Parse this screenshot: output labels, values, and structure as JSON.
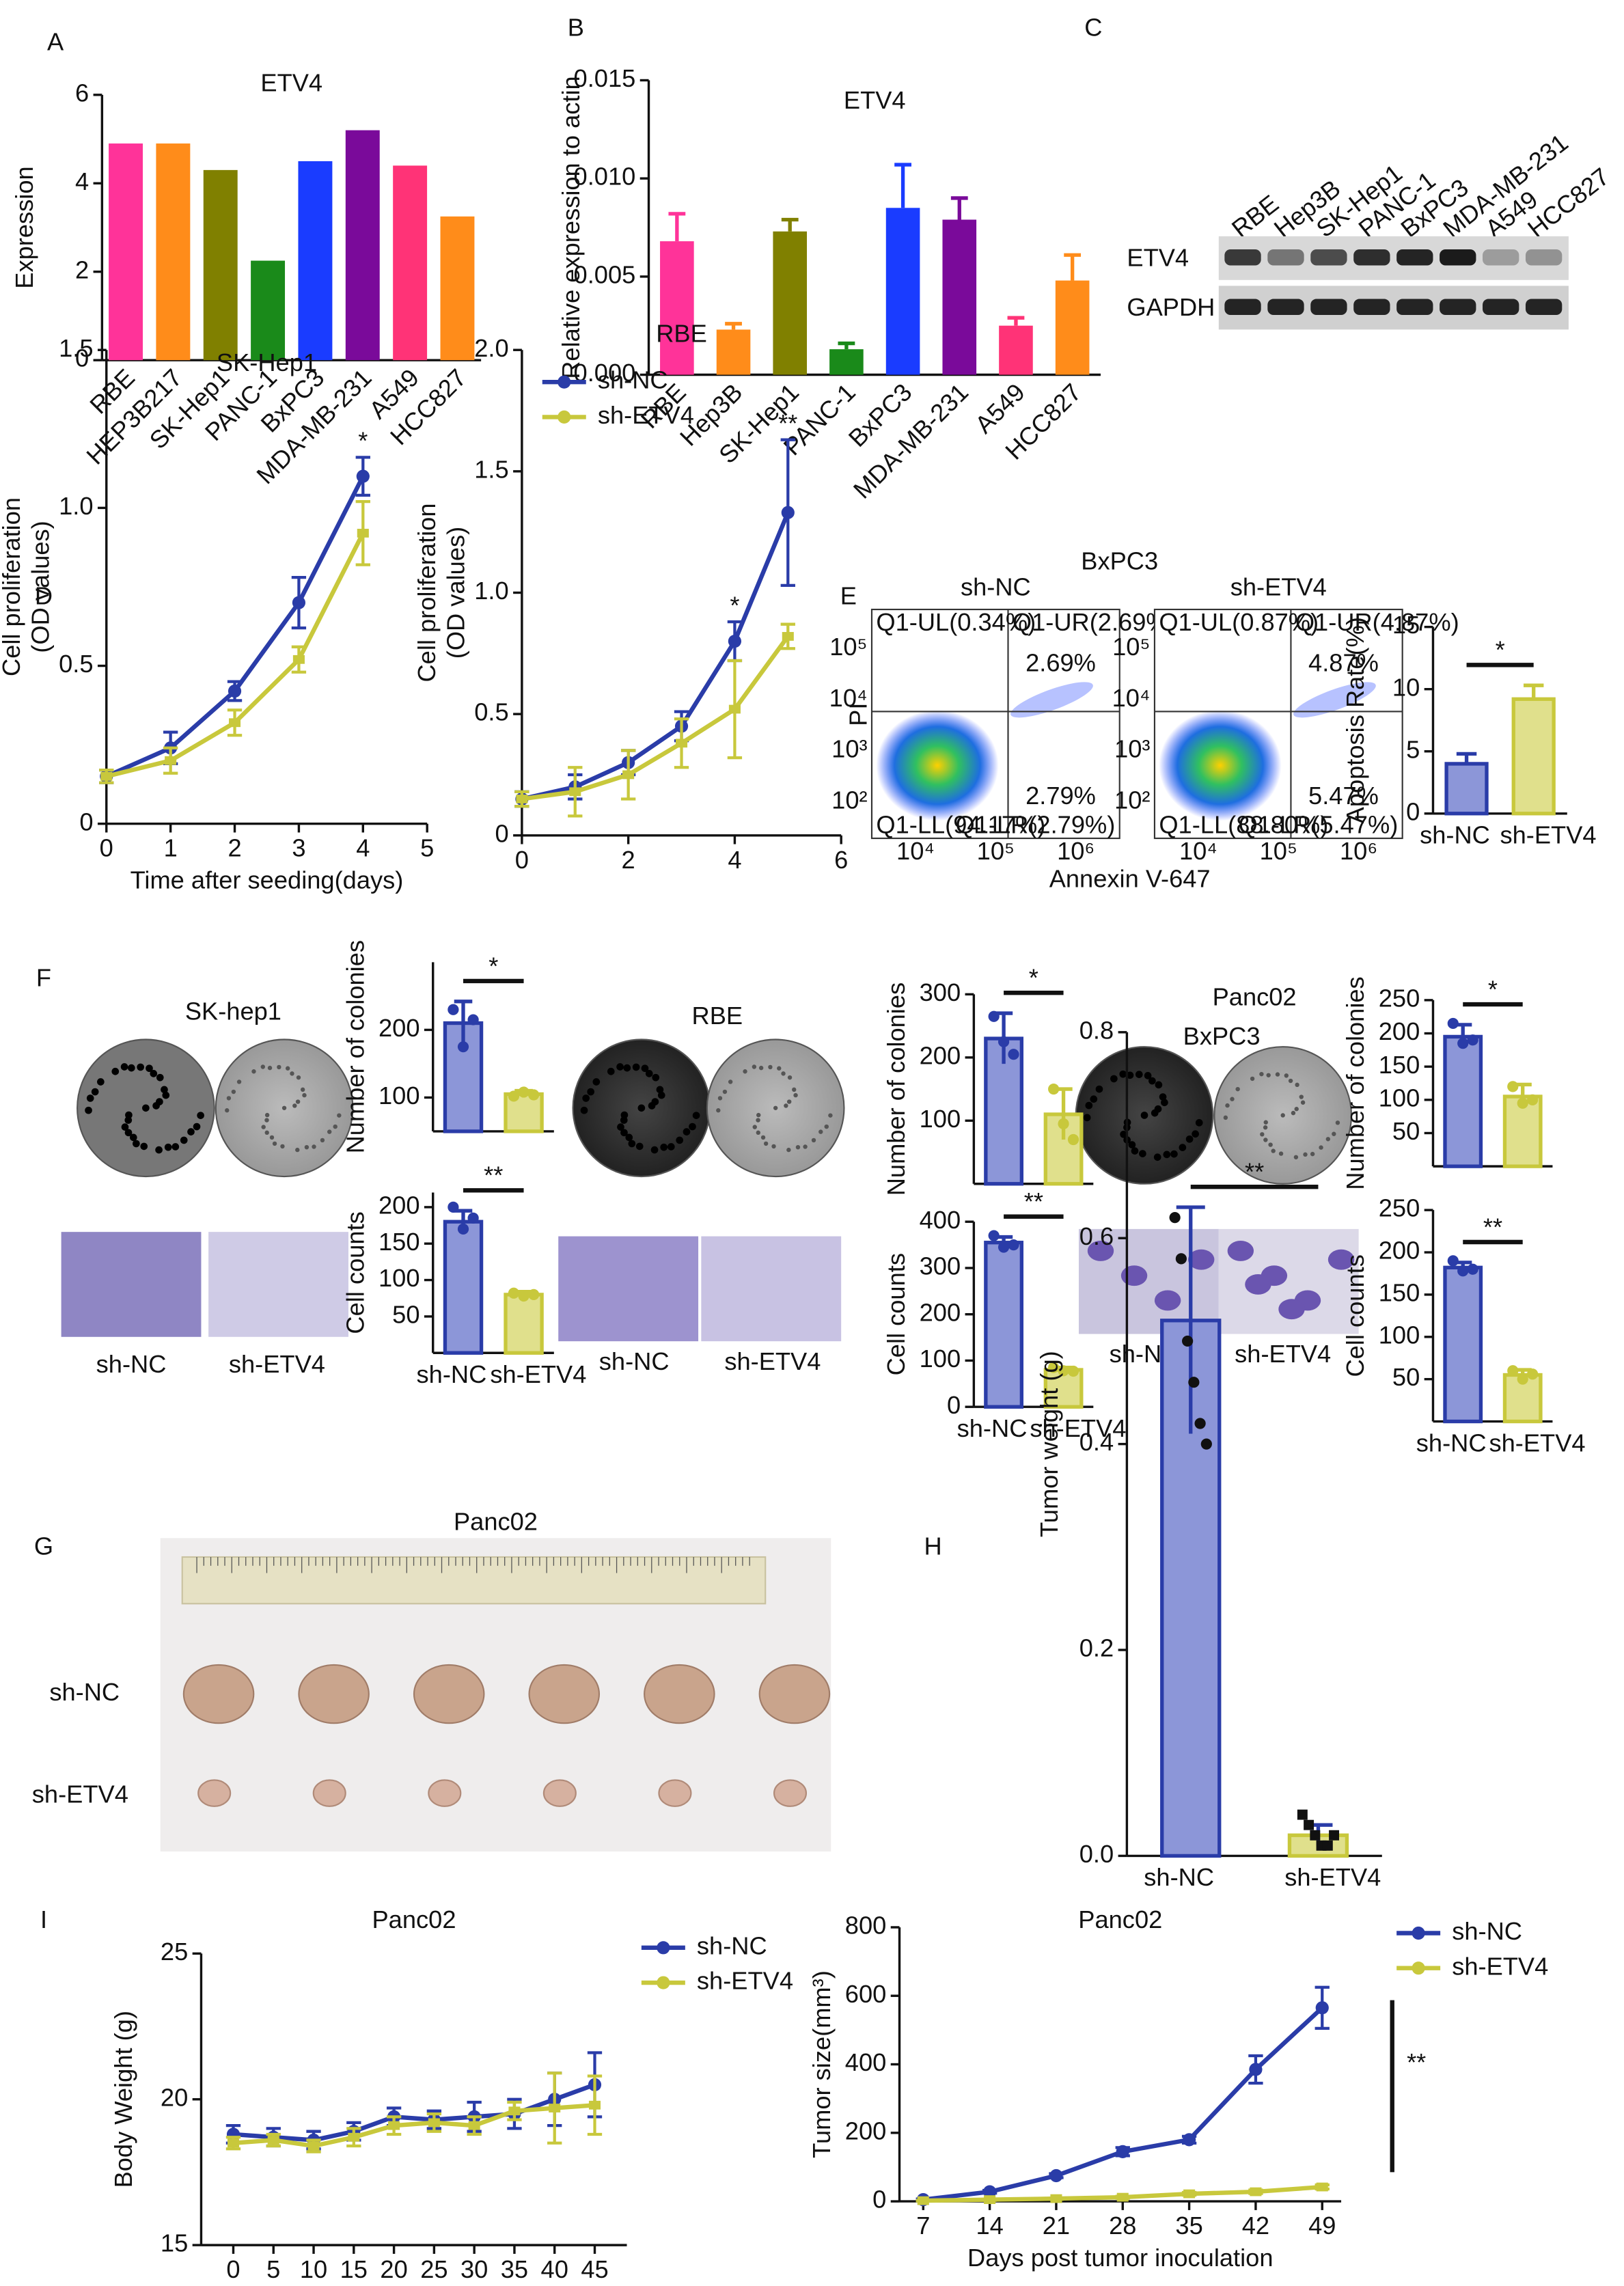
{
  "panel_labels": [
    "A",
    "B",
    "C",
    "D",
    "E",
    "F",
    "G",
    "H",
    "I"
  ],
  "blot": {
    "lanes": [
      "RBE",
      "Hep3B",
      "SK-Hep1",
      "PANC-1",
      "BxPC3",
      "MDA-MB-231",
      "A549",
      "HCC827"
    ],
    "rows": [
      "ETV4",
      "GAPDH"
    ]
  },
  "flow": {
    "title": "BxPC3",
    "ylabel": "PI",
    "xlabel": "Annexin V-647",
    "xticks": [
      "10⁴",
      "10⁵",
      "10⁶"
    ],
    "yticks": [
      "10²",
      "10³",
      "10⁴",
      "10⁵"
    ],
    "plots": [
      {
        "name": "sh-NC",
        "quadrants": [
          "Q1-UL(0.34%)",
          "Q1-UR(2.69%)",
          "Q1-LL(94.17%)",
          "Q1-LR(2.79%)"
        ],
        "upper": "2.69%",
        "lower": "2.79%"
      },
      {
        "name": "sh-ETV4",
        "quadrants": [
          "Q1-UL(0.87%)",
          "Q1-UR(4.87%)",
          "Q1-LL(88.80%)",
          "Q1-LR(5.47%)"
        ],
        "upper": "4.87%",
        "lower": "5.47%"
      }
    ]
  },
  "colony": {
    "titles": [
      "SK-hep1",
      "RBE",
      "BxPC3"
    ],
    "groups": [
      "sh-NC",
      "sh-ETV4"
    ]
  },
  "photo": {
    "title": "Panc02",
    "rows": [
      "sh-NC",
      "sh-ETV4"
    ]
  },
  "chart_data": [
    {
      "type": "bar",
      "title": "ETV4",
      "ylabel": "Expression",
      "categories": [
        "RBE",
        "HEP3B217",
        "SK-Hep1",
        "PANC-1",
        "BxPC3",
        "MDA-MB-231",
        "A549",
        "HCC827"
      ],
      "values": [
        4.9,
        4.9,
        4.3,
        2.25,
        4.5,
        5.2,
        4.4,
        3.25
      ],
      "colors": [
        "#ff3399",
        "#ff8c1a",
        "#808000",
        "#1a8a1a",
        "#1a3cff",
        "#7a0a9a",
        "#ff3377",
        "#ff8c1a"
      ],
      "ylim": [
        0,
        6
      ],
      "yticks": [
        0,
        2,
        4,
        6
      ]
    },
    {
      "type": "bar",
      "title": "ETV4",
      "ylabel": "Relative expression to actin",
      "categories": [
        "RBE",
        "Hep3B",
        "SK-Hep1",
        "PANC-1",
        "BxPC3",
        "MDA-MB-231",
        "A549",
        "HCC827"
      ],
      "values": [
        0.0068,
        0.0023,
        0.0073,
        0.0013,
        0.0085,
        0.0079,
        0.0025,
        0.0048
      ],
      "errors": [
        0.0014,
        0.0003,
        0.0006,
        0.0003,
        0.0022,
        0.0011,
        0.0004,
        0.0013
      ],
      "colors": [
        "#ff3399",
        "#ff8c1a",
        "#808000",
        "#1a8a1a",
        "#1a3cff",
        "#7a0a9a",
        "#ff3377",
        "#ff8c1a"
      ],
      "ylim": [
        0,
        0.015
      ],
      "yticks": [
        {
          "value": 0,
          "label": "0.000"
        },
        {
          "value": 0.005,
          "label": "0.005"
        },
        {
          "value": 0.01,
          "label": "0.010"
        },
        {
          "value": 0.015,
          "label": "0.015"
        }
      ]
    },
    {
      "type": "line",
      "title": "SK-Hep1",
      "ylabel": [
        "Cell proliferation",
        "(OD values)"
      ],
      "xlabel": "Time after seeding(days)",
      "x": [
        0,
        1,
        2,
        3,
        4
      ],
      "xlim": [
        0,
        5
      ],
      "xticks": [
        0,
        1,
        2,
        3,
        4,
        5
      ],
      "ylim": [
        0,
        1.5
      ],
      "yticks": [
        0,
        0.5,
        {
          "value": 1,
          "label": "1.0"
        },
        1.5
      ],
      "series": [
        {
          "name": "sh-NC",
          "color": "#2a3ca8",
          "values": [
            0.15,
            0.24,
            0.42,
            0.7,
            1.1
          ],
          "errors": [
            0.02,
            0.05,
            0.03,
            0.08,
            0.06
          ]
        },
        {
          "name": "sh-ETV4",
          "color": "#c8c83c",
          "values": [
            0.15,
            0.2,
            0.32,
            0.52,
            0.92
          ],
          "errors": [
            0.02,
            0.04,
            0.04,
            0.04,
            0.1
          ]
        }
      ],
      "annotations": [
        {
          "text": "*",
          "x": 4
        }
      ]
    },
    {
      "type": "line",
      "title": "RBE",
      "ylabel": [
        "Cell proliferation",
        "(OD values)"
      ],
      "x": [
        0,
        1,
        2,
        3,
        4,
        5
      ],
      "xlim": [
        0,
        6
      ],
      "xticks": [
        0,
        2,
        4,
        6
      ],
      "ylim": [
        0,
        2
      ],
      "yticks": [
        0,
        0.5,
        {
          "value": 1,
          "label": "1.0"
        },
        1.5,
        {
          "value": 2,
          "label": "2.0"
        }
      ],
      "legend": true,
      "series": [
        {
          "name": "sh-NC",
          "color": "#2a3ca8",
          "values": [
            0.15,
            0.2,
            0.3,
            0.45,
            0.8,
            1.33
          ],
          "errors": [
            0.03,
            0.05,
            0.05,
            0.06,
            0.08,
            0.3
          ]
        },
        {
          "name": "sh-ETV4",
          "color": "#c8c83c",
          "values": [
            0.15,
            0.18,
            0.25,
            0.38,
            0.52,
            0.82
          ],
          "errors": [
            0.03,
            0.1,
            0.1,
            0.1,
            0.2,
            0.05
          ]
        }
      ],
      "annotations": [
        {
          "text": "*",
          "x": 4
        },
        {
          "text": "**",
          "x": 5
        }
      ]
    },
    {
      "type": "bar",
      "ylabel": "Apoptosis Rate(%)",
      "categories": [
        "sh-NC",
        "sh-ETV4"
      ],
      "values": [
        4,
        9.2
      ],
      "errors": [
        0.8,
        1.1
      ],
      "colors": [
        "#8c96d8",
        "#e0e08c"
      ],
      "edge_colors": [
        "#2a3ca8",
        "#c8c83c"
      ],
      "ylim": [
        0,
        15
      ],
      "yticks": [
        0,
        5,
        10,
        15
      ],
      "significance": "*"
    },
    {
      "type": "bar",
      "ylabel": "Number of colonies",
      "values": [
        210,
        105
      ],
      "errors": [
        32,
        5
      ],
      "points": [
        [
          230,
          175,
          215
        ],
        [
          102,
          108,
          104
        ]
      ],
      "colors": [
        "#8c96d8",
        "#e0e08c"
      ],
      "edge_colors": [
        "#2a3ca8",
        "#c8c83c"
      ],
      "ylim": [
        50,
        300
      ],
      "yticks": [
        100,
        200
      ],
      "significance": "*"
    },
    {
      "type": "bar",
      "ylabel": "Cell counts",
      "categories": [
        "sh-NC",
        "sh-ETV4"
      ],
      "values": [
        180,
        80
      ],
      "errors": [
        15,
        4
      ],
      "points": [
        [
          200,
          170,
          185
        ],
        [
          82,
          78,
          80
        ]
      ],
      "colors": [
        "#8c96d8",
        "#e0e08c"
      ],
      "edge_colors": [
        "#2a3ca8",
        "#c8c83c"
      ],
      "ylim": [
        0,
        220
      ],
      "yticks": [
        50,
        100,
        150,
        200
      ],
      "significance": "**"
    },
    {
      "type": "bar",
      "ylabel": "Number of colonies",
      "values": [
        230,
        110
      ],
      "errors": [
        40,
        40
      ],
      "points": [
        [
          265,
          225,
          205
        ],
        [
          150,
          95,
          70
        ]
      ],
      "colors": [
        "#8c96d8",
        "#e0e08c"
      ],
      "edge_colors": [
        "#2a3ca8",
        "#c8c83c"
      ],
      "ylim": [
        0,
        300
      ],
      "yticks": [
        100,
        200,
        300
      ],
      "significance": "*"
    },
    {
      "type": "bar",
      "ylabel": "Cell counts",
      "categories": [
        "sh-NC",
        "sh-ETV4"
      ],
      "values": [
        355,
        80
      ],
      "errors": [
        12,
        5
      ],
      "points": [
        [
          370,
          345,
          350
        ],
        [
          85,
          78,
          77
        ]
      ],
      "colors": [
        "#8c96d8",
        "#e0e08c"
      ],
      "edge_colors": [
        "#2a3ca8",
        "#c8c83c"
      ],
      "ylim": [
        0,
        400
      ],
      "yticks": [
        0,
        100,
        200,
        300,
        400
      ],
      "significance": "**"
    },
    {
      "type": "bar",
      "ylabel": "Number of colonies",
      "values": [
        195,
        105
      ],
      "errors": [
        18,
        18
      ],
      "points": [
        [
          215,
          185,
          190
        ],
        [
          120,
          95,
          100
        ]
      ],
      "colors": [
        "#8c96d8",
        "#e0e08c"
      ],
      "edge_colors": [
        "#2a3ca8",
        "#c8c83c"
      ],
      "ylim": [
        0,
        250
      ],
      "yticks": [
        50,
        100,
        150,
        200,
        250
      ],
      "significance": "*"
    },
    {
      "type": "bar",
      "ylabel": "Cell counts",
      "categories": [
        "sh-NC",
        "sh-ETV4"
      ],
      "values": [
        182,
        55
      ],
      "errors": [
        6,
        6
      ],
      "points": [
        [
          190,
          178,
          180
        ],
        [
          60,
          50,
          56
        ]
      ],
      "colors": [
        "#8c96d8",
        "#e0e08c"
      ],
      "edge_colors": [
        "#2a3ca8",
        "#c8c83c"
      ],
      "ylim": [
        0,
        250
      ],
      "yticks": [
        50,
        100,
        150,
        200,
        250
      ],
      "significance": "**"
    },
    {
      "type": "bar",
      "title": "Panc02",
      "ylabel": "Tumor weight (g)",
      "categories": [
        "sh-NC",
        "sh-ETV4"
      ],
      "values": [
        0.52,
        0.02
      ],
      "errors": [
        0.11,
        0.01
      ],
      "points": [
        [
          0.62,
          0.58,
          0.5,
          0.46,
          0.42,
          0.4
        ],
        [
          0.04,
          0.03,
          0.02,
          0.01,
          0.01,
          0.02
        ]
      ],
      "colors": [
        "#8c96d8",
        "#e0e08c"
      ],
      "edge_colors": [
        "#2a3ca8",
        "#c8c83c"
      ],
      "ylim": [
        0,
        0.8
      ],
      "yticks": [
        {
          "value": 0,
          "label": "0.0"
        },
        0.2,
        0.4,
        0.6,
        0.8
      ],
      "significance": "**"
    },
    {
      "type": "line",
      "title": "Panc02",
      "ylabel": "Body Weight (g)",
      "xlabel": "Days post tumor inoculation",
      "x": [
        0,
        5,
        10,
        15,
        20,
        25,
        30,
        35,
        40,
        45
      ],
      "xlim": [
        -4,
        49
      ],
      "xticks": [
        0,
        5,
        10,
        15,
        20,
        25,
        30,
        35,
        40,
        45
      ],
      "ylim": [
        15,
        25
      ],
      "yticks": [
        15,
        20,
        25
      ],
      "legend": true,
      "series": [
        {
          "name": "sh-NC",
          "color": "#2a3ca8",
          "values": [
            18.8,
            18.7,
            18.6,
            18.9,
            19.4,
            19.3,
            19.4,
            19.5,
            20,
            20.5
          ],
          "errors": [
            0.3,
            0.3,
            0.3,
            0.3,
            0.3,
            0.3,
            0.5,
            0.5,
            0.9,
            1.1
          ]
        },
        {
          "name": "sh-ETV4",
          "color": "#c8c83c",
          "values": [
            18.5,
            18.6,
            18.4,
            18.7,
            19.1,
            19.2,
            19.1,
            19.6,
            19.7,
            19.8
          ],
          "errors": [
            0.2,
            0.2,
            0.2,
            0.3,
            0.3,
            0.3,
            0.3,
            0.3,
            1.2,
            1
          ]
        }
      ]
    },
    {
      "type": "line",
      "title": "Panc02",
      "ylabel": "Tumor size(mm³)",
      "xlabel": "Days post tumor inoculation",
      "x": [
        7,
        14,
        21,
        28,
        35,
        42,
        49
      ],
      "xlim": [
        4.5,
        51
      ],
      "xticks": [
        7,
        14,
        21,
        28,
        35,
        42,
        49
      ],
      "ylim": [
        0,
        800
      ],
      "yticks": [
        0,
        200,
        400,
        600,
        800
      ],
      "legend": true,
      "series": [
        {
          "name": "sh-NC",
          "color": "#2a3ca8",
          "values": [
            5,
            28,
            75,
            145,
            180,
            385,
            565
          ],
          "errors": [
            2,
            4,
            6,
            12,
            10,
            40,
            60
          ]
        },
        {
          "name": "sh-ETV4",
          "color": "#c8c83c",
          "values": [
            2,
            5,
            8,
            12,
            22,
            28,
            42
          ],
          "errors": [
            1,
            2,
            2,
            3,
            4,
            5,
            6
          ]
        }
      ],
      "annotations": [
        {
          "text": "**"
        }
      ]
    }
  ]
}
